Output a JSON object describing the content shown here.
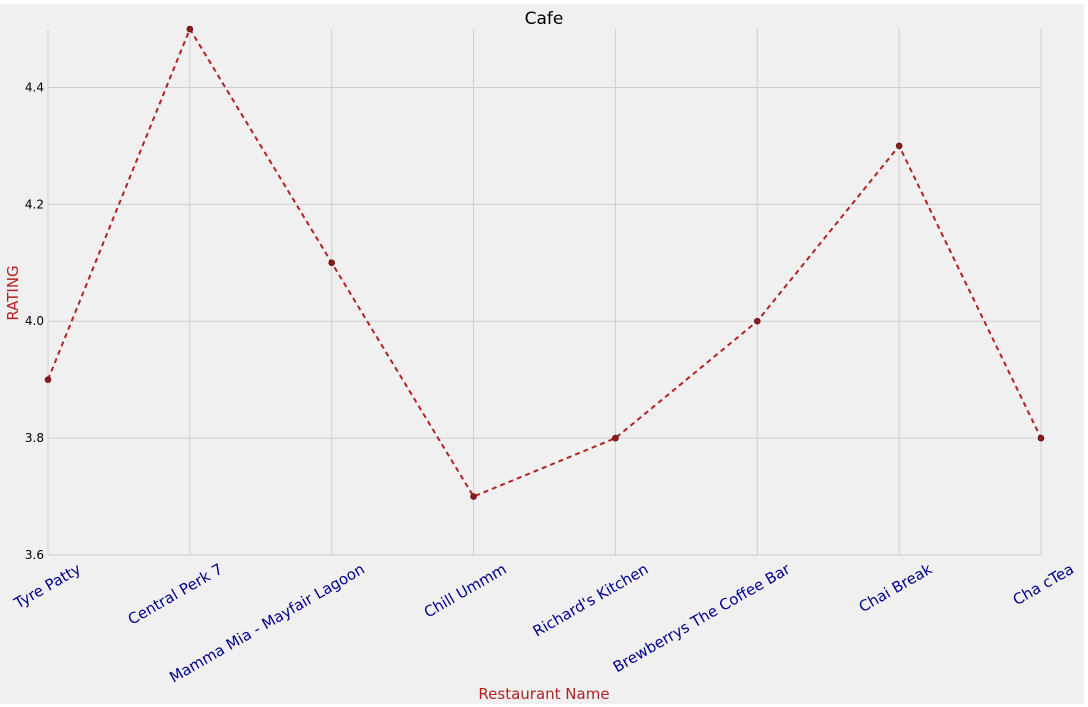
{
  "chart_data": {
    "type": "line",
    "title": "Cafe",
    "xlabel": "Restaurant Name",
    "ylabel": "RATING",
    "categories": [
      "Tyre Patty",
      "Central Perk 7",
      "Mamma Mia - Mayfair Lagoon",
      "Chill Ummm",
      "Richard's Kitchen",
      "Brewberrys The Coffee Bar",
      "Chai Break",
      "Cha cTea"
    ],
    "series": [
      {
        "values": [
          3.9,
          4.5,
          4.1,
          3.7,
          3.8,
          4.0,
          4.3,
          3.8
        ]
      }
    ],
    "ylim": [
      3.6,
      4.5
    ],
    "yticks": [
      "3.6",
      "3.8",
      "4.0",
      "4.2",
      "4.4"
    ],
    "grid": true,
    "line_style": "dashed",
    "colors": {
      "line": "#b22222",
      "marker": "#8b1a1a",
      "xtick_labels": "#00008b",
      "axis_labels": "#b22222",
      "background": "#f0f0f0",
      "grid": "#d0d0d0"
    }
  }
}
